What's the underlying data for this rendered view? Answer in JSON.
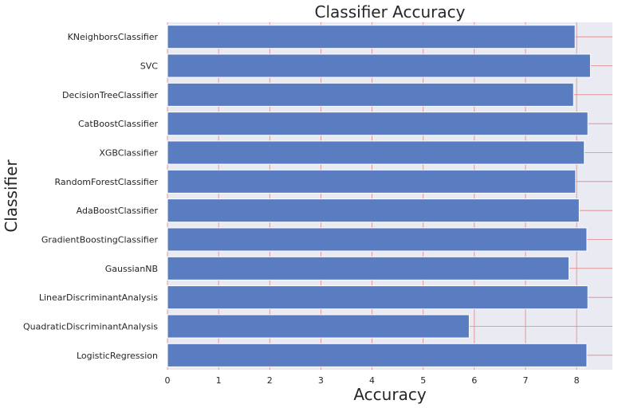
{
  "chart_data": {
    "type": "bar",
    "orientation": "horizontal",
    "title": "Classifier Accuracy",
    "xlabel": "Accuracy",
    "ylabel": "Classifier",
    "xlim": [
      0,
      8.7
    ],
    "xticks": [
      0,
      1,
      2,
      3,
      4,
      5,
      6,
      7,
      8
    ],
    "categories": [
      "KNeighborsClassifier",
      "SVC",
      "DecisionTreeClassifier",
      "CatBoostClassifier",
      "XGBClassifier",
      "RandomForestClassifier",
      "AdaBoostClassifier",
      "GradientBoostingClassifier",
      "GaussianNB",
      "LinearDiscriminantAnalysis",
      "QuadraticDiscriminantAnalysis",
      "LogisticRegression"
    ],
    "values": [
      7.97,
      8.27,
      7.94,
      8.22,
      8.15,
      7.98,
      8.05,
      8.2,
      7.85,
      8.22,
      5.9,
      8.2
    ],
    "grid": true,
    "colors": {
      "bar": "#5a7dc1",
      "bar_edge": "#ffffff",
      "plot_background": "#eaeaf2",
      "grid": "#e08585",
      "text": "#262626"
    }
  }
}
